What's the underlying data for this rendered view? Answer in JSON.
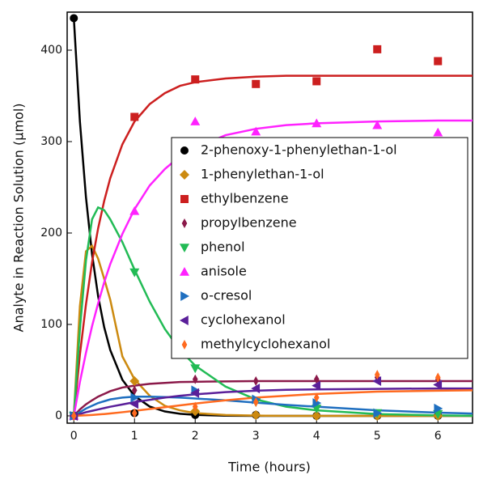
{
  "chart_data": {
    "type": "scatter",
    "xlabel": "Time (hours)",
    "ylabel": "Analyte in Reaction Solution (μmol)",
    "xlim": [
      -0.11,
      6.57
    ],
    "ylim": [
      -8,
      441.6
    ],
    "xticks": [
      0,
      1,
      2,
      3,
      4,
      5,
      6
    ],
    "yticks": [
      0,
      100,
      200,
      300,
      400
    ],
    "legend": "right",
    "x": [
      0,
      1,
      2,
      3,
      4,
      5,
      6
    ],
    "fit_x": [
      0,
      0.1,
      0.2,
      0.3,
      0.4,
      0.5,
      0.6,
      0.8,
      1,
      1.25,
      1.5,
      1.75,
      2,
      2.5,
      3,
      3.5,
      4,
      5,
      6,
      6.6
    ],
    "series": [
      {
        "name": "2-phenoxy-1-phenylethan-1-ol",
        "color": "#000000",
        "marker": "circle",
        "values": [
          435,
          3,
          1,
          1,
          0,
          0,
          0
        ],
        "fit": [
          435,
          322,
          239,
          177,
          131,
          97,
          72,
          39.5,
          21.7,
          10.2,
          4.8,
          2.3,
          1.1,
          0.2,
          0,
          0,
          0,
          0,
          0,
          0
        ]
      },
      {
        "name": "1-phenylethan-1-ol",
        "color": "#cc8a10",
        "marker": "diamond",
        "values": [
          0,
          38,
          5,
          1,
          0,
          0,
          0
        ],
        "fit": [
          0,
          120,
          180,
          186,
          172,
          150,
          127,
          65,
          40,
          22,
          11,
          6,
          3,
          1,
          0.3,
          0,
          0,
          0,
          0,
          0
        ]
      },
      {
        "name": "ethylbenzene",
        "color": "#cc1f1f",
        "marker": "square",
        "values": [
          0,
          327,
          368,
          363,
          366,
          401,
          388
        ],
        "fit": [
          0,
          67,
          122,
          168,
          205,
          235,
          260,
          297,
          322,
          341,
          353,
          361,
          365,
          369,
          371,
          372,
          372,
          372,
          372,
          372
        ]
      },
      {
        "name": "propylbenzene",
        "color": "#8b1a4a",
        "marker": "thin-diamond",
        "values": [
          0,
          28,
          40,
          38,
          40,
          42,
          40
        ],
        "fit": [
          0,
          7,
          12.6,
          17,
          21,
          24,
          27,
          31,
          33,
          35,
          36,
          37,
          37.3,
          37.7,
          38,
          38,
          38,
          38,
          38,
          38
        ]
      },
      {
        "name": "phenol",
        "color": "#22bb55",
        "marker": "triangle-down",
        "values": [
          0,
          157,
          52,
          15,
          8,
          3,
          2
        ],
        "fit": [
          0,
          95,
          170,
          215,
          228,
          225,
          215,
          190,
          160,
          125,
          95,
          72,
          55,
          32,
          18,
          10,
          6,
          2,
          0.5,
          0
        ]
      },
      {
        "name": "anisole",
        "color": "#ff22ff",
        "marker": "triangle-up",
        "values": [
          0,
          224,
          322,
          311,
          320,
          318,
          310
        ],
        "fit": [
          0,
          37,
          69,
          98,
          123,
          146,
          166,
          199,
          226,
          252,
          270,
          284,
          293,
          307,
          314,
          318,
          320,
          322,
          323,
          323
        ]
      },
      {
        "name": "o-cresol",
        "color": "#1f6fc0",
        "marker": "triangle-right",
        "values": [
          0,
          20,
          28,
          18,
          14,
          3,
          8
        ],
        "fit": [
          0,
          4,
          8,
          11,
          14,
          16,
          18,
          20,
          21,
          21,
          20.5,
          20,
          19,
          17,
          14.5,
          12,
          10,
          6,
          3.5,
          2.5
        ]
      },
      {
        "name": "cyclohexanol",
        "color": "#5a1f99",
        "marker": "triangle-left",
        "values": [
          0,
          13,
          25,
          30,
          33,
          38,
          34
        ],
        "fit": [
          0,
          2,
          4,
          5.5,
          7,
          8.5,
          10,
          12.5,
          15,
          17.5,
          20,
          22,
          23.5,
          26,
          27.5,
          28.5,
          29,
          29.5,
          30,
          30
        ]
      },
      {
        "name": "methylcyclohexanol",
        "color": "#ff6a1f",
        "marker": "thin-diamond",
        "values": [
          0,
          3,
          10,
          15,
          20,
          45,
          42
        ],
        "fit": [
          0,
          0.3,
          0.6,
          1,
          1.5,
          2,
          2.6,
          4,
          5.5,
          7.5,
          9.5,
          11.5,
          13.5,
          17,
          20,
          22,
          24,
          26.5,
          27.5,
          28
        ]
      }
    ]
  }
}
